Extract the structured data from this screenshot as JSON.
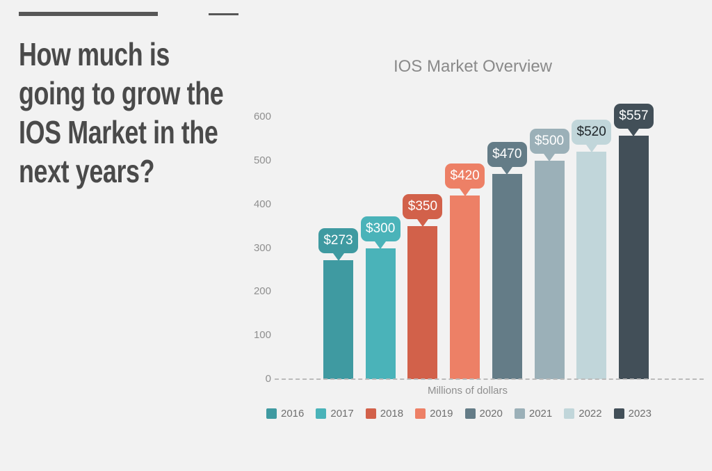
{
  "slide": {
    "background": "#F2F2F2"
  },
  "decor": {
    "underline_color": "#575757"
  },
  "headline": {
    "text": "How much is going to grow the IOS Market in the next years?",
    "lines": [
      "How much is",
      "going to grow the",
      "IOS Market in the",
      "next years?"
    ],
    "color": "#4A4A4A"
  },
  "chart_data": {
    "type": "bar",
    "title": "IOS Market Overview",
    "title_color": "#8A8A8A",
    "xlabel": "Millions of dollars",
    "ylabel": "",
    "categories": [
      "2016",
      "2017",
      "2018",
      "2019",
      "2020",
      "2021",
      "2022",
      "2023"
    ],
    "values": [
      273,
      300,
      350,
      420,
      470,
      500,
      520,
      557
    ],
    "bar_labels": [
      "$273",
      "$300",
      "$350",
      "$420",
      "$470",
      "$500",
      "$520",
      "$557"
    ],
    "colors": [
      "#3F9AA1",
      "#4AB3B9",
      "#D2614A",
      "#ED8066",
      "#647C87",
      "#9BB0B8",
      "#C1D6DA",
      "#424F58"
    ],
    "label_text_colors": [
      "#FFFFFF",
      "#FFFFFF",
      "#FFFFFF",
      "#FFFFFF",
      "#FFFFFF",
      "#FFFFFF",
      "#1E2428",
      "#FFFFFF"
    ],
    "yticks": [
      0,
      100,
      200,
      300,
      400,
      500,
      600
    ],
    "ylim": [
      0,
      620
    ],
    "grid": false,
    "baseline_style": "dashed",
    "axis_text_color": "#8F8F8F",
    "legend_position": "bottom",
    "legend_text_color": "#6F6F6F"
  }
}
